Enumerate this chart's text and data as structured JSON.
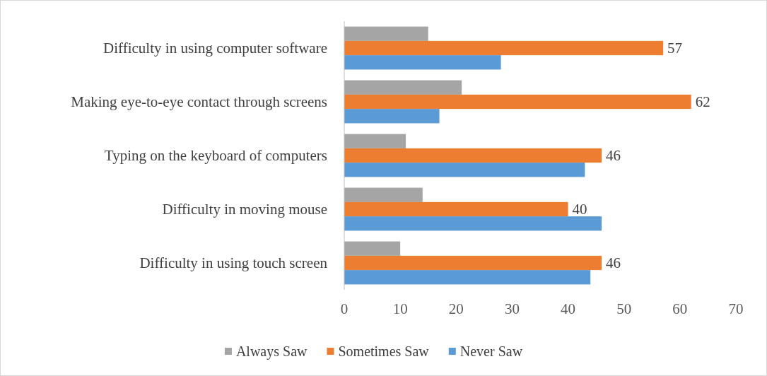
{
  "chart_data": {
    "type": "bar",
    "orientation": "horizontal",
    "categories": [
      "Difficulty in using computer software",
      "Making eye-to-eye contact through screens",
      "Typing on the keyboard of computers",
      "Difficulty in moving mouse",
      "Difficulty in using touch screen"
    ],
    "series": [
      {
        "name": "Always Saw",
        "color": "#a5a5a5",
        "values": [
          15,
          21,
          11,
          14,
          10
        ]
      },
      {
        "name": "Sometimes Saw",
        "color": "#ed7d31",
        "values": [
          57,
          62,
          46,
          40,
          46
        ],
        "value_labels": [
          "57",
          "62",
          "46",
          "40",
          "46"
        ]
      },
      {
        "name": "Never Saw",
        "color": "#5b9bd5",
        "values": [
          28,
          17,
          43,
          46,
          44
        ]
      }
    ],
    "xlim": [
      0,
      70
    ],
    "xticks": [
      0,
      10,
      20,
      30,
      40,
      50,
      60,
      70
    ],
    "grid": false,
    "legend": "bottom"
  }
}
